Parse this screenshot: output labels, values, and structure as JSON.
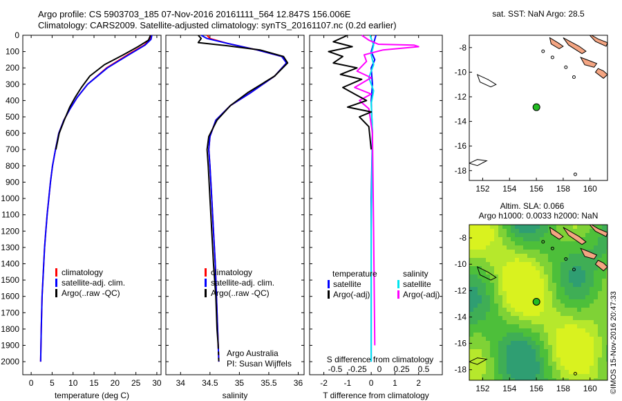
{
  "header": {
    "line1": "Argo profile: CS 5903703_185 07-Nov-2016 20161111_564 12.847S 156.006E",
    "line2": "Climatology: CARS2009. Satellite-adjusted climatology: synTS_20161107.nc (0.2d earlier)"
  },
  "stamp": "©IMOS 15-Nov-2016 20:47:33",
  "colors": {
    "climatology": "#ff0000",
    "satellite": "#0000ff",
    "argo": "#000000",
    "t_sat": "#0000ff",
    "s_sat": "#00e5ee",
    "s_argo": "#ff00ff",
    "land": "#f4a582"
  },
  "chart_data": [
    {
      "id": "temperature",
      "type": "line",
      "xlabel": "temperature (deg C)",
      "ylabel": "",
      "xlim": [
        -2,
        31
      ],
      "ylim": [
        2080,
        0
      ],
      "xticks": [
        0,
        5,
        10,
        15,
        20,
        25,
        30
      ],
      "yticks": [
        0,
        100,
        200,
        300,
        400,
        500,
        600,
        700,
        800,
        900,
        1000,
        1100,
        1200,
        1300,
        1400,
        1500,
        1600,
        1700,
        1800,
        1900,
        2000
      ],
      "legend": [
        "climatology",
        "satellite-adj. clim.",
        "Argo(..raw -QC)"
      ],
      "series": [
        {
          "name": "climatology",
          "color": "#ff0000",
          "x": [
            28.6,
            28.4,
            27.0,
            23.0,
            18.0,
            13.5,
            11.0,
            9.3,
            7.8,
            6.6,
            5.8,
            5.1,
            4.6,
            4.2,
            3.8,
            3.5,
            3.2,
            3.0,
            2.8,
            2.6,
            2.4,
            2.25
          ],
          "y": [
            0,
            25,
            60,
            120,
            200,
            300,
            380,
            450,
            520,
            600,
            700,
            800,
            900,
            1000,
            1100,
            1200,
            1300,
            1400,
            1500,
            1600,
            1800,
            2000
          ]
        },
        {
          "name": "satellite-adj. clim.",
          "color": "#0000ff",
          "x": [
            28.8,
            28.6,
            27.2,
            23.3,
            18.2,
            13.5,
            11.0,
            9.3,
            7.8,
            6.6,
            5.8,
            5.1,
            4.6,
            4.2,
            3.8,
            3.5,
            3.2,
            3.0,
            2.8,
            2.6,
            2.4,
            2.25
          ],
          "y": [
            0,
            25,
            60,
            120,
            200,
            300,
            380,
            450,
            520,
            600,
            700,
            800,
            900,
            1000,
            1100,
            1200,
            1300,
            1400,
            1500,
            1600,
            1800,
            2000
          ]
        },
        {
          "name": "Argo(..raw -QC)",
          "color": "#000000",
          "x": [
            28.5,
            28.0,
            25.5,
            22.0,
            17.5,
            14.0,
            12.0,
            10.5,
            9.2,
            7.9,
            6.7,
            5.9
          ],
          "y": [
            0,
            30,
            70,
            120,
            180,
            250,
            320,
            380,
            440,
            520,
            600,
            700
          ]
        }
      ]
    },
    {
      "id": "salinity",
      "type": "line",
      "xlabel": "salinity",
      "ylabel": "",
      "xlim": [
        33.75,
        36.1
      ],
      "ylim": [
        2080,
        0
      ],
      "xticks": [
        34,
        34.5,
        35,
        35.5,
        36
      ],
      "legend": [
        "climatology",
        "satellite-adj. clim.",
        "Argo(..raw -QC)"
      ],
      "annotation": [
        "Argo Australia",
        "PI: Susan Wijffels"
      ],
      "series": [
        {
          "name": "climatology",
          "color": "#ff0000",
          "x": [
            34.45,
            34.5,
            34.8,
            35.3,
            35.72,
            35.8,
            35.6,
            35.2,
            34.85,
            34.6,
            34.5,
            34.48,
            34.5,
            34.53,
            34.56,
            34.59,
            34.61,
            34.63,
            34.65
          ],
          "y": [
            0,
            20,
            50,
            90,
            130,
            170,
            250,
            350,
            430,
            520,
            620,
            700,
            800,
            1000,
            1200,
            1400,
            1600,
            1800,
            2000
          ]
        },
        {
          "name": "satellite-adj. clim.",
          "color": "#0000ff",
          "x": [
            34.35,
            34.45,
            34.8,
            35.3,
            35.72,
            35.8,
            35.6,
            35.2,
            34.85,
            34.6,
            34.5,
            34.48,
            34.5,
            34.53,
            34.56,
            34.59,
            34.61,
            34.63,
            34.65
          ],
          "y": [
            0,
            20,
            50,
            90,
            130,
            170,
            250,
            350,
            430,
            520,
            620,
            700,
            800,
            1000,
            1200,
            1400,
            1600,
            1800,
            2000
          ]
        },
        {
          "name": "Argo(..raw -QC)",
          "color": "#000000",
          "x": [
            34.3,
            34.35,
            34.3,
            34.8,
            35.35,
            35.75,
            35.82,
            35.6,
            35.15,
            34.85,
            34.62,
            34.48,
            34.45,
            34.47,
            34.5,
            34.53,
            34.56,
            34.6,
            34.62,
            34.64
          ],
          "y": [
            0,
            20,
            45,
            65,
            90,
            130,
            170,
            250,
            350,
            430,
            520,
            620,
            700,
            800,
            1000,
            1200,
            1400,
            1600,
            1800,
            1900
          ]
        }
      ]
    },
    {
      "id": "difference",
      "type": "line",
      "xlabel": "T difference from climatology",
      "xlabel2": "S difference from climatology",
      "xlim": [
        -2.6,
        3.0
      ],
      "ylim": [
        2080,
        0
      ],
      "xticks": [
        -2,
        -1,
        0,
        1,
        2
      ],
      "xticks2": [
        "-0.5",
        "-0.25",
        "0",
        "0.25",
        "0.5"
      ],
      "legend": {
        "temperature": "temperature",
        "salinity": "salinity",
        "items": [
          "satellite",
          "Argo(-adj)",
          "satellite",
          "Argo(-adj)"
        ]
      },
      "series": [
        {
          "name": "satellite",
          "color": "#0000ff",
          "x": [
            0.2,
            0.1,
            0.0,
            0.15,
            0.0,
            0.05,
            0.0,
            0.05,
            0.0,
            0.0,
            0.0
          ],
          "y": [
            0,
            50,
            100,
            150,
            200,
            300,
            400,
            600,
            1000,
            1500,
            2000
          ]
        },
        {
          "name": "satellite",
          "color": "#00e5ee",
          "x": [
            -0.05,
            0.1,
            0.0,
            0.1,
            -0.1,
            0.1,
            0.0,
            0.05,
            0.0,
            0.0
          ],
          "y": [
            0,
            60,
            120,
            180,
            260,
            340,
            420,
            600,
            1200,
            2000
          ]
        },
        {
          "name": "Argo(-adj)",
          "color": "#ff00ff",
          "x": [
            -0.4,
            -0.1,
            0.3,
            1.8,
            2.0,
            0.5,
            -0.3,
            -0.2,
            -0.6,
            0.0,
            -0.7,
            0.0,
            -0.5,
            -0.1,
            0.05,
            0.1,
            0.15
          ],
          "y": [
            0,
            30,
            55,
            60,
            70,
            90,
            120,
            160,
            220,
            260,
            320,
            360,
            400,
            450,
            600,
            1200,
            1900
          ]
        },
        {
          "name": "Argo(-adj)",
          "color": "#000000",
          "x": [
            -1.0,
            -1.6,
            -0.8,
            -1.8,
            -1.2,
            -1.6,
            -0.6,
            -1.3,
            -0.4,
            -1.2,
            -0.7,
            -0.2,
            -1.0,
            0.0,
            -0.5,
            -0.1,
            0.0
          ],
          "y": [
            0,
            40,
            70,
            100,
            130,
            170,
            200,
            240,
            270,
            320,
            360,
            400,
            440,
            470,
            500,
            560,
            700
          ]
        }
      ]
    },
    {
      "id": "sst-map",
      "type": "scatter",
      "title": "sat. SST: NaN Argo: 28.5",
      "xlim": [
        151,
        161.3
      ],
      "ylim": [
        -18.8,
        -7
      ],
      "xticks": [
        152,
        154,
        156,
        158,
        160
      ],
      "yticks": [
        -8,
        -10,
        -12,
        -14,
        -16,
        -18
      ],
      "point": {
        "lon": 156.006,
        "lat": -12.847
      }
    },
    {
      "id": "sla-map",
      "type": "heatmap",
      "title": "Altim. SLA: 0.066",
      "subtitle": "Argo h1000: 0.0033 h2000: NaN",
      "xlim": [
        151,
        161.3
      ],
      "ylim": [
        -18.8,
        -7
      ],
      "xticks": [
        152,
        154,
        156,
        158,
        160
      ],
      "yticks": [
        -8,
        -10,
        -12,
        -14,
        -16,
        -18
      ],
      "point": {
        "lon": 156.006,
        "lat": -12.847
      }
    }
  ]
}
